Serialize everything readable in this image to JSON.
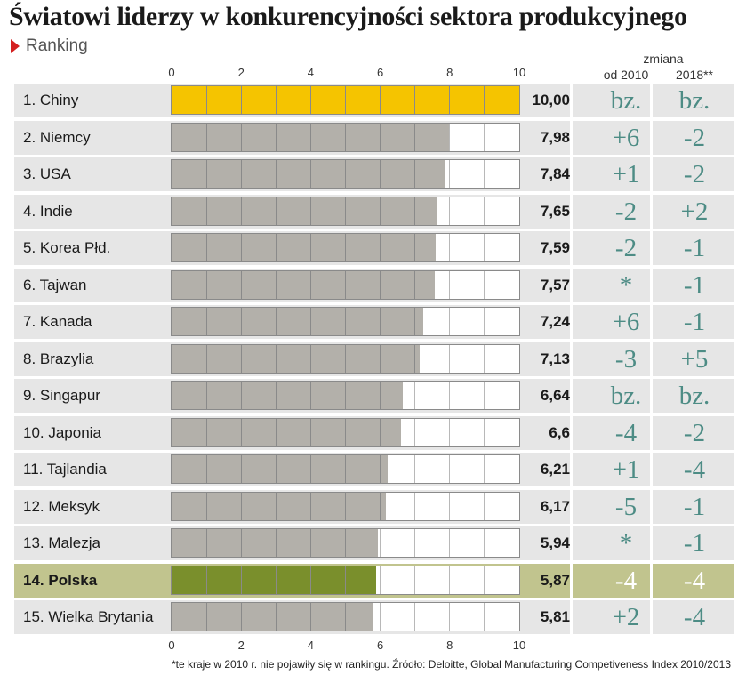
{
  "title": "Światowi liderzy w konkurencyjności sektora produkcyjnego",
  "subtitle": "Ranking",
  "change_header": "zmiana",
  "col_since_2010": "od 2010",
  "col_2018": "2018**",
  "footnote": "*te kraje w 2010 r. nie pojawiły się w rankingu. Źródło: Deloitte, Global Manufacturing Competiveness Index 2010/2013",
  "colors": {
    "bar_default": "#b3b0aa",
    "bar_leader": "#f5c400",
    "bar_highlight": "#7a8f2c",
    "row_bg": "#e6e6e6",
    "row_highlight_bg": "#c1c48e",
    "change_text": "#4d8c85"
  },
  "chart_data": {
    "type": "bar",
    "orientation": "horizontal",
    "xlim": [
      0,
      10
    ],
    "ticks": [
      "0",
      "2",
      "4",
      "6",
      "8",
      "10"
    ],
    "categories": [
      "1. Chiny",
      "2. Niemcy",
      "3. USA",
      "4. Indie",
      "5. Korea Płd.",
      "6. Tajwan",
      "7. Kanada",
      "8. Brazylia",
      "9. Singapur",
      "10. Japonia",
      "11. Tajlandia",
      "12. Meksyk",
      "13. Malezja",
      "14. Polska",
      "15. Wielka Brytania"
    ],
    "values": [
      10.0,
      7.98,
      7.84,
      7.65,
      7.59,
      7.57,
      7.24,
      7.13,
      6.64,
      6.6,
      6.21,
      6.17,
      5.94,
      5.87,
      5.81
    ],
    "value_labels": [
      "10,00",
      "7,98",
      "7,84",
      "7,65",
      "7,59",
      "7,57",
      "7,24",
      "7,13",
      "6,64",
      "6,6",
      "6,21",
      "6,17",
      "5,94",
      "5,87",
      "5,81"
    ],
    "change_since_2010": [
      "bz.",
      "+6",
      "+1",
      "-2",
      "-2",
      "*",
      "+6",
      "-3",
      "bz.",
      "-4",
      "+1",
      "-5",
      "*",
      "-4",
      "+2"
    ],
    "change_2018": [
      "bz.",
      "-2",
      "-2",
      "+2",
      "-1",
      "-1",
      "-1",
      "+5",
      "bz.",
      "-2",
      "-4",
      "-1",
      "-1",
      "-4",
      "-4"
    ],
    "highlight_index": 13,
    "leader_index": 0
  }
}
